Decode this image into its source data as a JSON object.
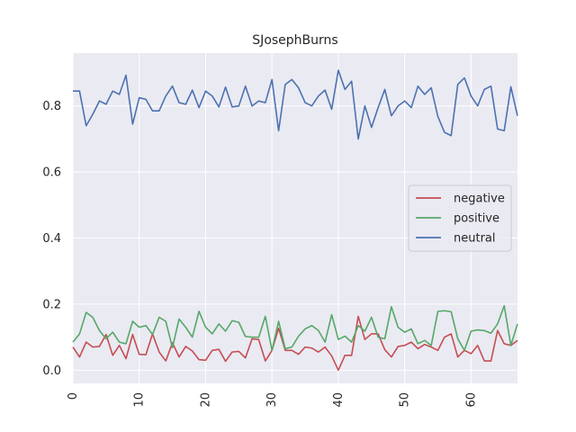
{
  "chart_data": {
    "type": "line",
    "title": "SJosephBurns",
    "xlabel": "",
    "ylabel": "",
    "xlim": [
      0,
      67
    ],
    "ylim": [
      -0.04,
      0.96
    ],
    "xticks": [
      0,
      10,
      20,
      30,
      40,
      50,
      60
    ],
    "yticks": [
      0.0,
      0.2,
      0.4,
      0.6,
      0.8
    ],
    "ytick_labels": [
      "0.0",
      "0.2",
      "0.4",
      "0.6",
      "0.8"
    ],
    "grid": true,
    "legend_position": "center-right",
    "x": [
      0,
      1,
      2,
      3,
      4,
      5,
      6,
      7,
      8,
      9,
      10,
      11,
      12,
      13,
      14,
      15,
      16,
      17,
      18,
      19,
      20,
      21,
      22,
      23,
      24,
      25,
      26,
      27,
      28,
      29,
      30,
      31,
      32,
      33,
      34,
      35,
      36,
      37,
      38,
      39,
      40,
      41,
      42,
      43,
      44,
      45,
      46,
      47,
      48,
      49,
      50,
      51,
      52,
      53,
      54,
      55,
      56,
      57,
      58,
      59,
      60,
      61,
      62,
      63,
      64,
      65,
      66,
      67
    ],
    "series": [
      {
        "name": "negative",
        "color": "#c44e52",
        "values": [
          0.07,
          0.04,
          0.085,
          0.07,
          0.072,
          0.108,
          0.045,
          0.075,
          0.035,
          0.108,
          0.048,
          0.047,
          0.11,
          0.055,
          0.028,
          0.083,
          0.04,
          0.072,
          0.058,
          0.032,
          0.03,
          0.06,
          0.063,
          0.027,
          0.055,
          0.057,
          0.037,
          0.095,
          0.093,
          0.028,
          0.06,
          0.127,
          0.06,
          0.06,
          0.048,
          0.07,
          0.067,
          0.055,
          0.07,
          0.043,
          0.0,
          0.045,
          0.045,
          0.163,
          0.093,
          0.11,
          0.11,
          0.062,
          0.04,
          0.072,
          0.075,
          0.085,
          0.065,
          0.078,
          0.07,
          0.06,
          0.1,
          0.11,
          0.04,
          0.06,
          0.05,
          0.075,
          0.028,
          0.028,
          0.12,
          0.08,
          0.075,
          0.09
        ]
      },
      {
        "name": "positive",
        "color": "#55a868",
        "values": [
          0.085,
          0.11,
          0.175,
          0.16,
          0.12,
          0.095,
          0.115,
          0.085,
          0.08,
          0.148,
          0.13,
          0.135,
          0.108,
          0.16,
          0.148,
          0.068,
          0.155,
          0.13,
          0.1,
          0.178,
          0.13,
          0.11,
          0.14,
          0.118,
          0.15,
          0.145,
          0.102,
          0.1,
          0.1,
          0.163,
          0.06,
          0.148,
          0.065,
          0.07,
          0.103,
          0.125,
          0.135,
          0.12,
          0.085,
          0.168,
          0.093,
          0.103,
          0.085,
          0.135,
          0.118,
          0.16,
          0.1,
          0.095,
          0.192,
          0.13,
          0.115,
          0.125,
          0.08,
          0.09,
          0.075,
          0.178,
          0.18,
          0.177,
          0.095,
          0.06,
          0.118,
          0.122,
          0.12,
          0.112,
          0.14,
          0.195,
          0.075,
          0.14
        ]
      },
      {
        "name": "neutral",
        "color": "#4c72b0",
        "values": [
          0.845,
          0.845,
          0.74,
          0.775,
          0.815,
          0.805,
          0.845,
          0.835,
          0.893,
          0.745,
          0.825,
          0.82,
          0.785,
          0.785,
          0.83,
          0.86,
          0.81,
          0.805,
          0.848,
          0.795,
          0.845,
          0.83,
          0.797,
          0.857,
          0.797,
          0.8,
          0.86,
          0.8,
          0.815,
          0.81,
          0.88,
          0.725,
          0.865,
          0.88,
          0.855,
          0.81,
          0.8,
          0.83,
          0.848,
          0.79,
          0.908,
          0.85,
          0.875,
          0.7,
          0.8,
          0.735,
          0.795,
          0.85,
          0.77,
          0.8,
          0.815,
          0.795,
          0.86,
          0.835,
          0.855,
          0.768,
          0.72,
          0.71,
          0.865,
          0.885,
          0.83,
          0.8,
          0.85,
          0.86,
          0.73,
          0.725,
          0.858,
          0.77
        ]
      }
    ]
  }
}
